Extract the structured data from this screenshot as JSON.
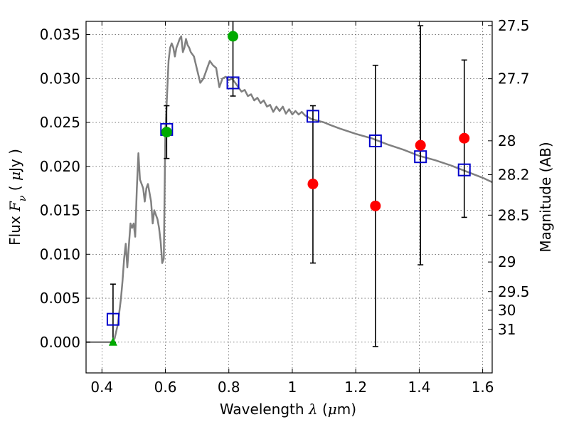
{
  "chart_data": {
    "type": "scatter",
    "x_label_prefix": "Wavelength ",
    "x_label_symbol": "λ",
    "x_label_unit_open": " (",
    "x_label_unit_mu": "μ",
    "x_label_unit_close": "m)",
    "y_label_prefix": "Flux ",
    "y_label_symbol": "F",
    "y_label_subscript": "ν",
    "y_label_unit_open": " ( ",
    "y_label_unit_mu": "μ",
    "y_label_unit_close": "Jy )",
    "y2_label": "Magnitude (AB)",
    "xlim": [
      0.35,
      1.63
    ],
    "ylim": [
      -0.0035,
      0.0365
    ],
    "grid": true,
    "x_ticks": [
      {
        "value": 0.4,
        "label": "0.4"
      },
      {
        "value": 0.6,
        "label": "0.6"
      },
      {
        "value": 0.8,
        "label": "0.8"
      },
      {
        "value": 1.0,
        "label": "1"
      },
      {
        "value": 1.2,
        "label": "1.2"
      },
      {
        "value": 1.4,
        "label": "1.4"
      },
      {
        "value": 1.6,
        "label": "1.6"
      }
    ],
    "y_ticks": [
      {
        "value": 0.0,
        "label": "0.000"
      },
      {
        "value": 0.005,
        "label": "0.005"
      },
      {
        "value": 0.01,
        "label": "0.010"
      },
      {
        "value": 0.015,
        "label": "0.015"
      },
      {
        "value": 0.02,
        "label": "0.020"
      },
      {
        "value": 0.025,
        "label": "0.025"
      },
      {
        "value": 0.03,
        "label": "0.030"
      },
      {
        "value": 0.035,
        "label": "0.035"
      }
    ],
    "y2_ticks": [
      {
        "flux": 0.03603,
        "label": "27.5"
      },
      {
        "flux": 0.02997,
        "label": "27.7"
      },
      {
        "flux": 0.02291,
        "label": "28"
      },
      {
        "flux": 0.01905,
        "label": "28.2"
      },
      {
        "flux": 0.01445,
        "label": "28.5"
      },
      {
        "flux": 0.00912,
        "label": "29"
      },
      {
        "flux": 0.00575,
        "label": "29.5"
      },
      {
        "flux": 0.00363,
        "label": "30"
      },
      {
        "flux": 0.00145,
        "label": "31"
      }
    ],
    "template": {
      "color": "#808080",
      "x": [
        0.35,
        0.43,
        0.44,
        0.45,
        0.46,
        0.465,
        0.47,
        0.475,
        0.48,
        0.485,
        0.49,
        0.495,
        0.5,
        0.505,
        0.51,
        0.515,
        0.52,
        0.525,
        0.53,
        0.535,
        0.54,
        0.545,
        0.55,
        0.555,
        0.56,
        0.565,
        0.57,
        0.575,
        0.58,
        0.585,
        0.59,
        0.595,
        0.6,
        0.605,
        0.61,
        0.615,
        0.62,
        0.625,
        0.63,
        0.635,
        0.64,
        0.645,
        0.65,
        0.655,
        0.66,
        0.665,
        0.67,
        0.675,
        0.68,
        0.69,
        0.7,
        0.71,
        0.72,
        0.73,
        0.74,
        0.75,
        0.76,
        0.77,
        0.78,
        0.79,
        0.8,
        0.81,
        0.82,
        0.83,
        0.84,
        0.85,
        0.86,
        0.87,
        0.88,
        0.89,
        0.9,
        0.91,
        0.92,
        0.93,
        0.94,
        0.95,
        0.96,
        0.97,
        0.98,
        0.99,
        1.0,
        1.01,
        1.02,
        1.03,
        1.04,
        1.06,
        1.08,
        1.1,
        1.12,
        1.15,
        1.2,
        1.25,
        1.3,
        1.35,
        1.4,
        1.45,
        1.5,
        1.55,
        1.6,
        1.63
      ],
      "y": [
        0.0,
        0.0,
        0.0004,
        0.002,
        0.005,
        0.007,
        0.0095,
        0.0112,
        0.0085,
        0.011,
        0.0135,
        0.013,
        0.0135,
        0.012,
        0.0175,
        0.0215,
        0.0185,
        0.018,
        0.0175,
        0.016,
        0.0175,
        0.018,
        0.017,
        0.016,
        0.0135,
        0.015,
        0.0145,
        0.014,
        0.013,
        0.0115,
        0.009,
        0.0095,
        0.024,
        0.028,
        0.032,
        0.0335,
        0.034,
        0.0335,
        0.0325,
        0.0335,
        0.034,
        0.0345,
        0.0348,
        0.033,
        0.0335,
        0.0345,
        0.0338,
        0.0335,
        0.033,
        0.0325,
        0.031,
        0.0295,
        0.03,
        0.031,
        0.032,
        0.0315,
        0.0312,
        0.029,
        0.03,
        0.0302,
        0.0298,
        0.03,
        0.0295,
        0.029,
        0.0285,
        0.0287,
        0.028,
        0.0282,
        0.0275,
        0.0278,
        0.0272,
        0.0275,
        0.0268,
        0.027,
        0.0262,
        0.0268,
        0.0263,
        0.0268,
        0.026,
        0.0265,
        0.0259,
        0.0263,
        0.0259,
        0.0262,
        0.0258,
        0.0254,
        0.0252,
        0.025,
        0.0247,
        0.0243,
        0.0237,
        0.0232,
        0.0225,
        0.0219,
        0.0212,
        0.0207,
        0.0201,
        0.0194,
        0.0187,
        0.0182
      ]
    },
    "model_points": {
      "color": "#0000CC",
      "x": [
        0.435,
        0.604,
        0.813,
        1.065,
        1.262,
        1.404,
        1.542
      ],
      "y": [
        0.0026,
        0.0242,
        0.0295,
        0.0257,
        0.0229,
        0.0211,
        0.0196
      ]
    },
    "detections": {
      "color": "#00AA00",
      "x": [
        0.604,
        0.813
      ],
      "y": [
        0.0239,
        0.0348
      ],
      "err_low": [
        0.003,
        0.0068
      ],
      "err_high": [
        0.003,
        0.0068
      ]
    },
    "upper_limit": {
      "color": "#00AA00",
      "x": [
        0.435
      ],
      "y": [
        0.0
      ],
      "err_high": [
        0.0066
      ]
    },
    "weak_points": {
      "color": "#FF0000",
      "x": [
        1.065,
        1.262,
        1.404,
        1.542
      ],
      "y": [
        0.018,
        0.0155,
        0.0224,
        0.0232
      ],
      "err_low": [
        0.009,
        0.016,
        0.0136,
        0.009
      ],
      "err_high": [
        0.0089,
        0.016,
        0.0136,
        0.0089
      ]
    }
  }
}
